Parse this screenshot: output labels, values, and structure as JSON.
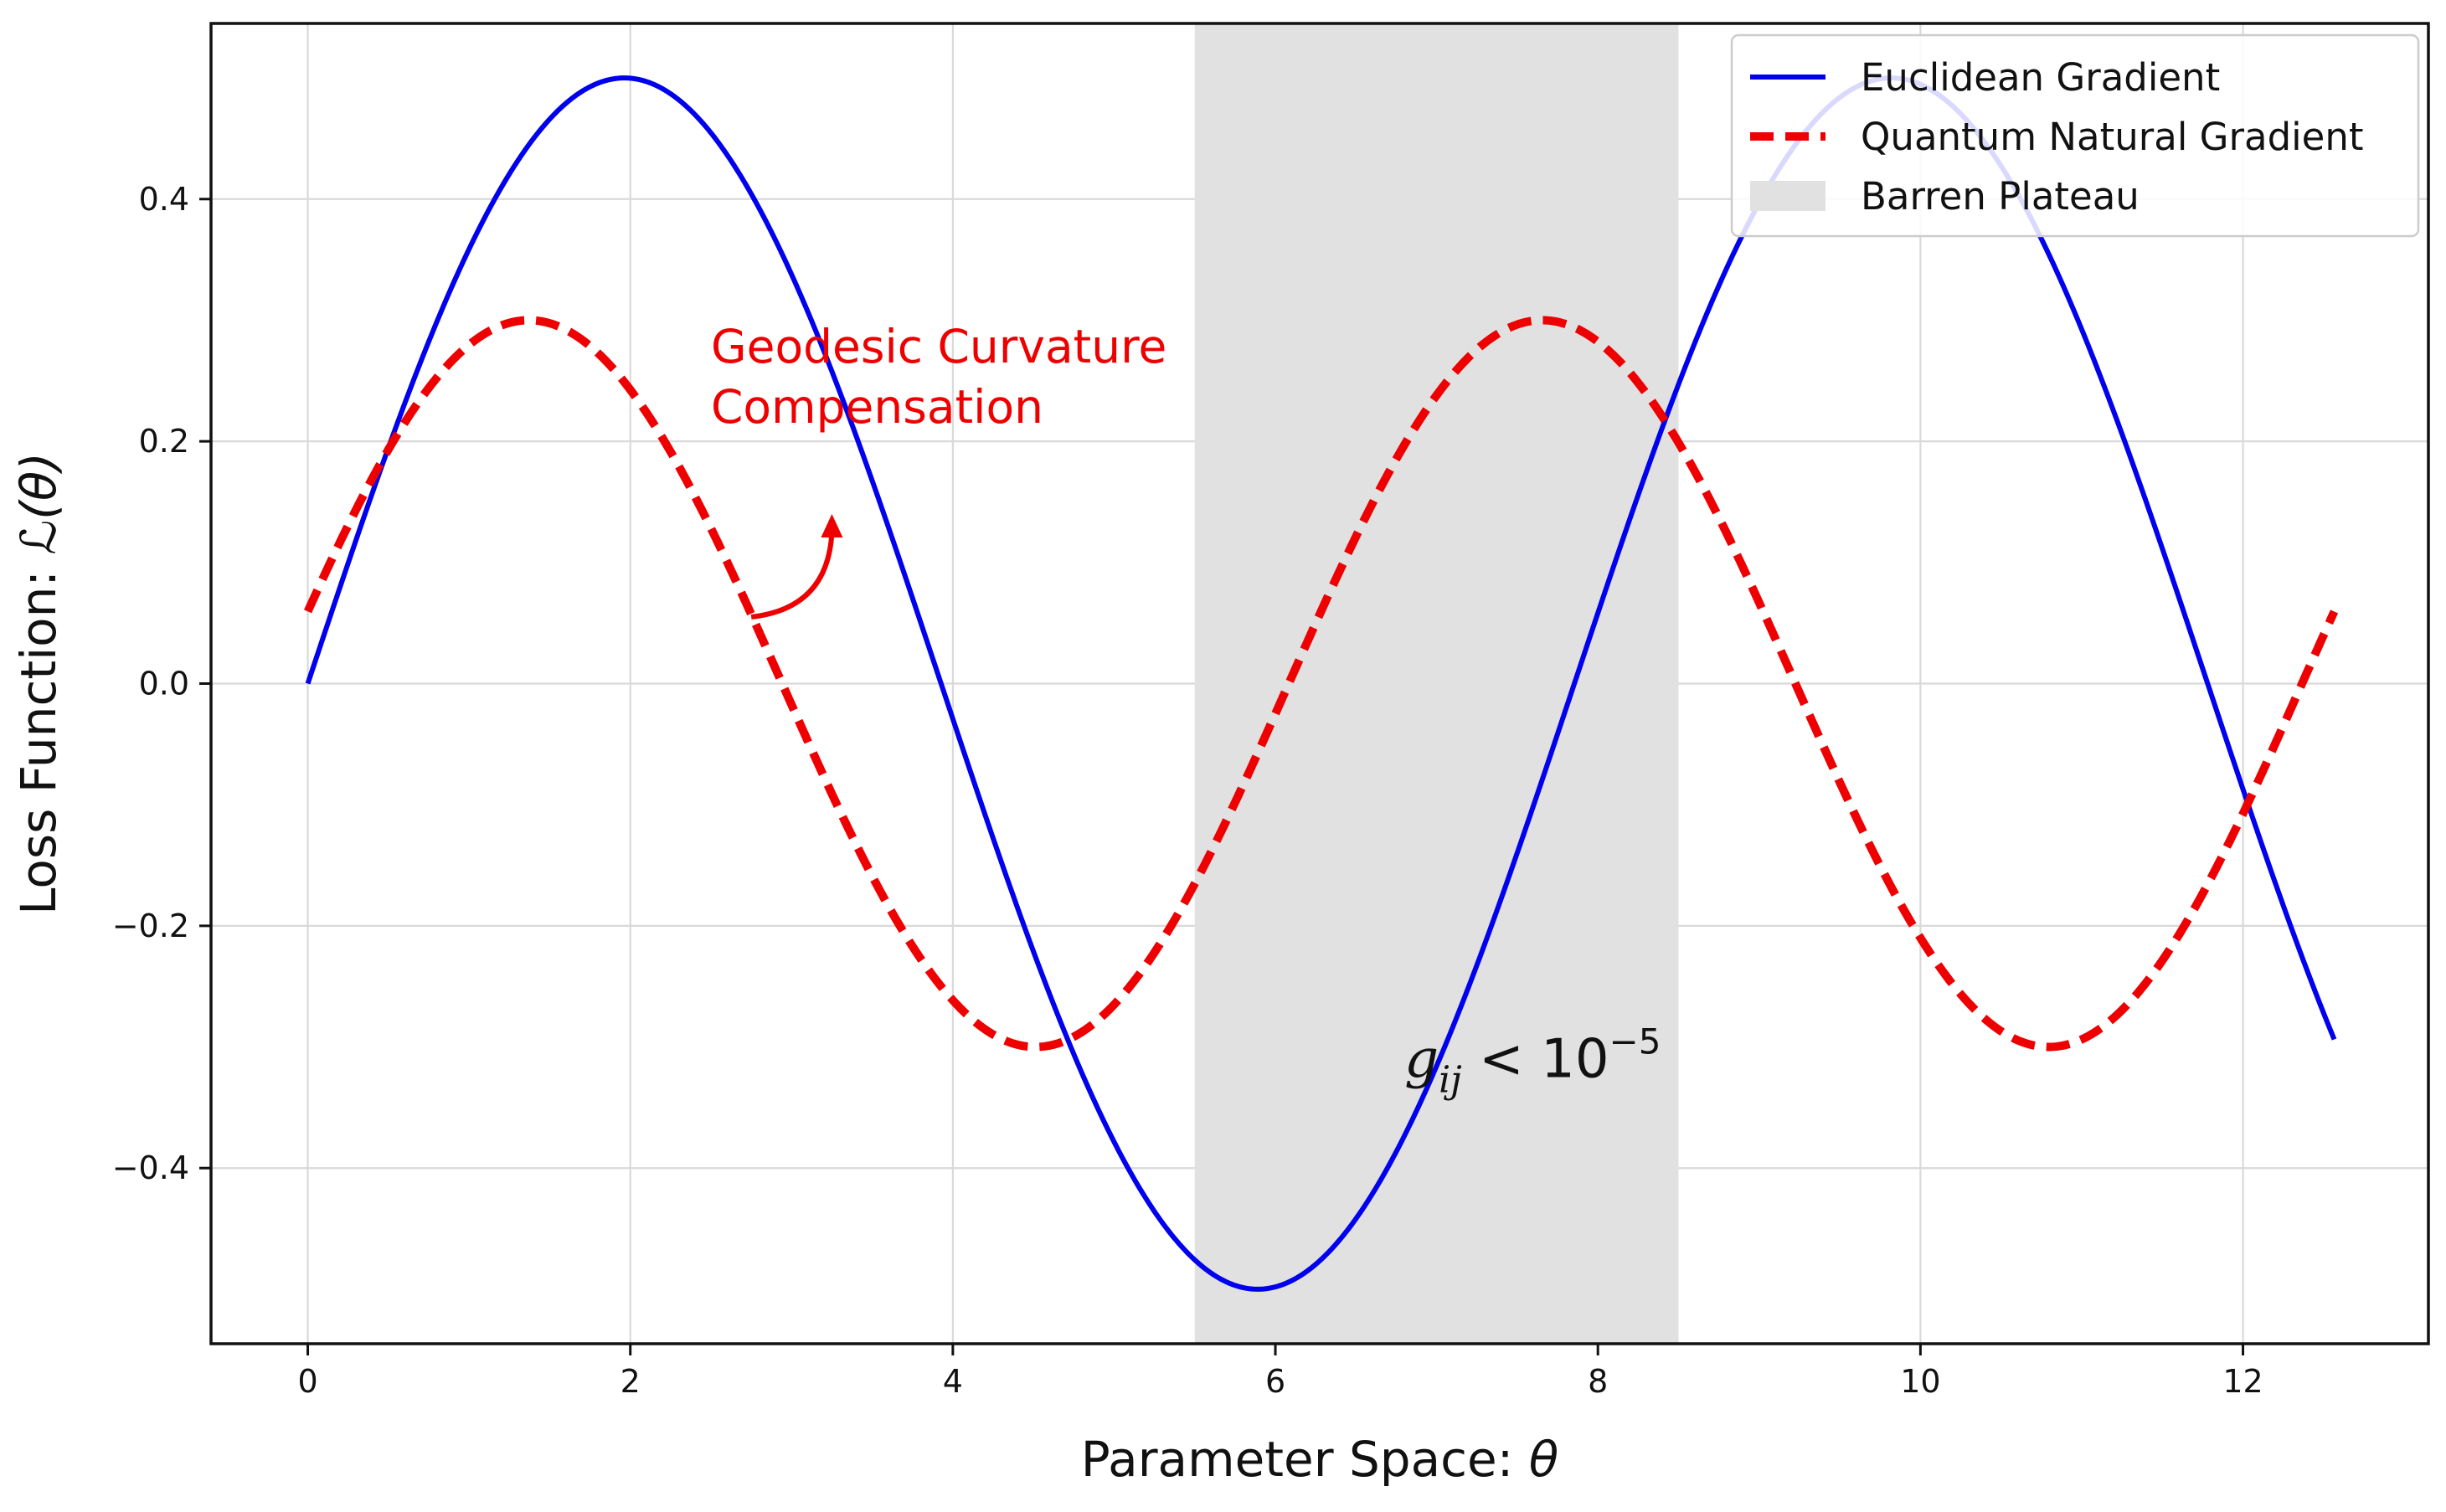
{
  "chart_data": {
    "type": "line",
    "x_label_prefix": "Parameter Space: ",
    "x_label_symbol": "θ",
    "y_label_prefix": "Loss Function: ",
    "y_label_symbol": "ℒ(θ)",
    "xlim": [
      -0.6,
      13.15
    ],
    "ylim": [
      -0.545,
      0.545
    ],
    "x_ticks": [
      0,
      2,
      4,
      6,
      8,
      10,
      12
    ],
    "x_tick_labels": [
      "0",
      "2",
      "4",
      "6",
      "8",
      "10",
      "12"
    ],
    "y_ticks": [
      0.4,
      0.2,
      0.0,
      -0.2,
      -0.4
    ],
    "y_tick_labels": [
      "0.4",
      "0.2",
      "0.0",
      "−0.2",
      "−0.4"
    ],
    "grid": true,
    "legend_position": "top-right",
    "series": [
      {
        "name": "Euclidean Gradient",
        "color": "#0000ee",
        "style": "solid",
        "function": "0.5 * sin(0.8 * x)",
        "x_range": [
          0,
          12.566
        ],
        "samples": [
          [
            0,
            0.0
          ],
          [
            1,
            0.359
          ],
          [
            2,
            0.5
          ],
          [
            3,
            0.338
          ],
          [
            4,
            -0.029
          ],
          [
            5,
            -0.378
          ],
          [
            6,
            -0.497
          ],
          [
            7,
            -0.316
          ],
          [
            8,
            0.058
          ],
          [
            9,
            0.396
          ],
          [
            10,
            0.495
          ],
          [
            11,
            0.294
          ],
          [
            12,
            -0.087
          ],
          [
            12.566,
            -0.294
          ]
        ]
      },
      {
        "name": "Quantum Natural Gradient",
        "color": "#ee0000",
        "style": "dashed",
        "function": "0.3 * sin(x + 0.2)",
        "x_range": [
          0,
          12.566
        ],
        "samples": [
          [
            0,
            0.06
          ],
          [
            1,
            0.28
          ],
          [
            2,
            0.242
          ],
          [
            3,
            -0.017
          ],
          [
            4,
            -0.261
          ],
          [
            5,
            -0.266
          ],
          [
            6,
            -0.025
          ],
          [
            7,
            0.24
          ],
          [
            8,
            0.28
          ],
          [
            9,
            0.063
          ],
          [
            10,
            -0.225
          ],
          [
            11,
            -0.292
          ],
          [
            12,
            -0.106
          ],
          [
            12.566,
            0.06
          ]
        ]
      }
    ],
    "shaded_region": {
      "name": "Barren Plateau",
      "x_range": [
        5.5,
        8.5
      ],
      "color": "#e1e1e1"
    },
    "annotations": [
      {
        "lines": [
          "Geodesic Curvature",
          "Compensation"
        ],
        "color": "#ee0000",
        "text_x": 2.5,
        "text_y": 0.265,
        "arrow_from": [
          2.75,
          0.055
        ],
        "arrow_to": [
          3.25,
          0.14
        ]
      }
    ],
    "metric_label": {
      "base": "g",
      "subscript": "ij",
      "relation": " < 10",
      "exponent": "−5",
      "x": 6.8,
      "y": -0.325
    }
  }
}
